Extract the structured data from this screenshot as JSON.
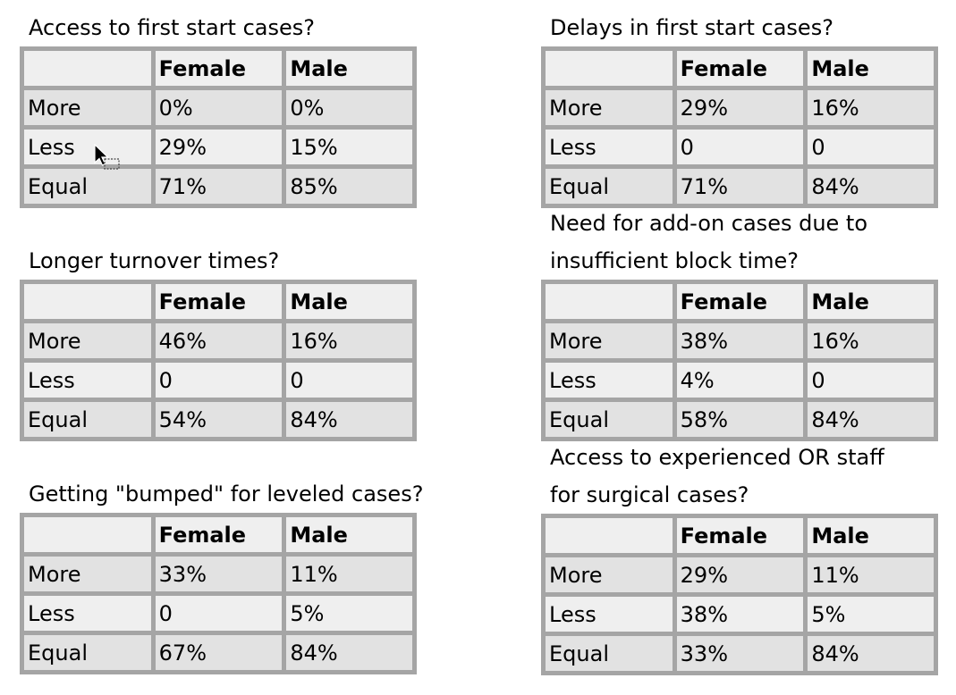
{
  "headers": {
    "female": "Female",
    "male": "Male"
  },
  "rows": {
    "more": "More",
    "less": "Less",
    "equal": "Equal"
  },
  "tables": [
    {
      "title_lines": [
        "Access to first start cases?"
      ],
      "values": {
        "more": [
          "0%",
          "0%"
        ],
        "less": [
          "29%",
          "15%"
        ],
        "equal": [
          "71%",
          "85%"
        ]
      }
    },
    {
      "title_lines": [
        "Delays in first start cases?"
      ],
      "values": {
        "more": [
          "29%",
          "16%"
        ],
        "less": [
          "0",
          "0"
        ],
        "equal": [
          "71%",
          "84%"
        ]
      }
    },
    {
      "title_lines": [
        "Longer turnover times?"
      ],
      "values": {
        "more": [
          "46%",
          "16%"
        ],
        "less": [
          "0",
          "0"
        ],
        "equal": [
          "54%",
          "84%"
        ]
      }
    },
    {
      "title_lines": [
        "Need for add-on cases due to",
        "insufficient block time?"
      ],
      "values": {
        "more": [
          "38%",
          "16%"
        ],
        "less": [
          "4%",
          "0"
        ],
        "equal": [
          "58%",
          "84%"
        ]
      }
    },
    {
      "title_lines": [
        "Getting \"bumped\" for leveled cases?"
      ],
      "values": {
        "more": [
          "33%",
          "11%"
        ],
        "less": [
          "0",
          "5%"
        ],
        "equal": [
          "67%",
          "84%"
        ]
      }
    },
    {
      "title_lines": [
        "Access to experienced OR staff",
        "for surgical cases?"
      ],
      "values": {
        "more": [
          "29%",
          "11%"
        ],
        "less": [
          "38%",
          "5%"
        ],
        "equal": [
          "33%",
          "84%"
        ]
      }
    }
  ],
  "icons": {
    "cursor": "mouse-pointer-icon"
  }
}
